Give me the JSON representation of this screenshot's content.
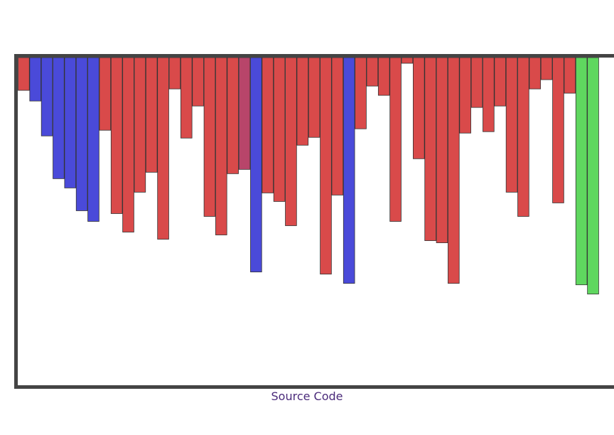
{
  "footer": {
    "source_link": "Source Code"
  },
  "colors": {
    "unsorted": "#d94a4a",
    "compared": "#4a4ad9",
    "pivot": "#b8456a",
    "sorted": "#5fd75f",
    "bar_outline": "#333333",
    "frame": "#444444",
    "link": "#4a2a7a"
  },
  "chart_data": {
    "type": "bar",
    "title": "",
    "xlabel": "",
    "ylabel": "",
    "orientation": "hanging-from-top",
    "ylim": [
      0,
      460
    ],
    "values": [
      46,
      61,
      110,
      170,
      183,
      215,
      230,
      102,
      219,
      245,
      189,
      161,
      255,
      44,
      113,
      68,
      223,
      249,
      163,
      157,
      301,
      190,
      202,
      236,
      123,
      112,
      304,
      193,
      317,
      100,
      40,
      53,
      230,
      8,
      142,
      257,
      260,
      317,
      106,
      70,
      104,
      68,
      189,
      223,
      44,
      31,
      204,
      50,
      319,
      332
    ],
    "states": [
      "u",
      "c",
      "c",
      "c",
      "c",
      "c",
      "c",
      "u",
      "u",
      "u",
      "u",
      "u",
      "u",
      "u",
      "u",
      "u",
      "u",
      "u",
      "u",
      "p",
      "c",
      "u",
      "u",
      "u",
      "u",
      "u",
      "u",
      "u",
      "c",
      "u",
      "u",
      "u",
      "u",
      "u",
      "u",
      "u",
      "u",
      "u",
      "u",
      "u",
      "u",
      "u",
      "u",
      "u",
      "u",
      "u",
      "u",
      "u",
      "s",
      "s"
    ]
  }
}
